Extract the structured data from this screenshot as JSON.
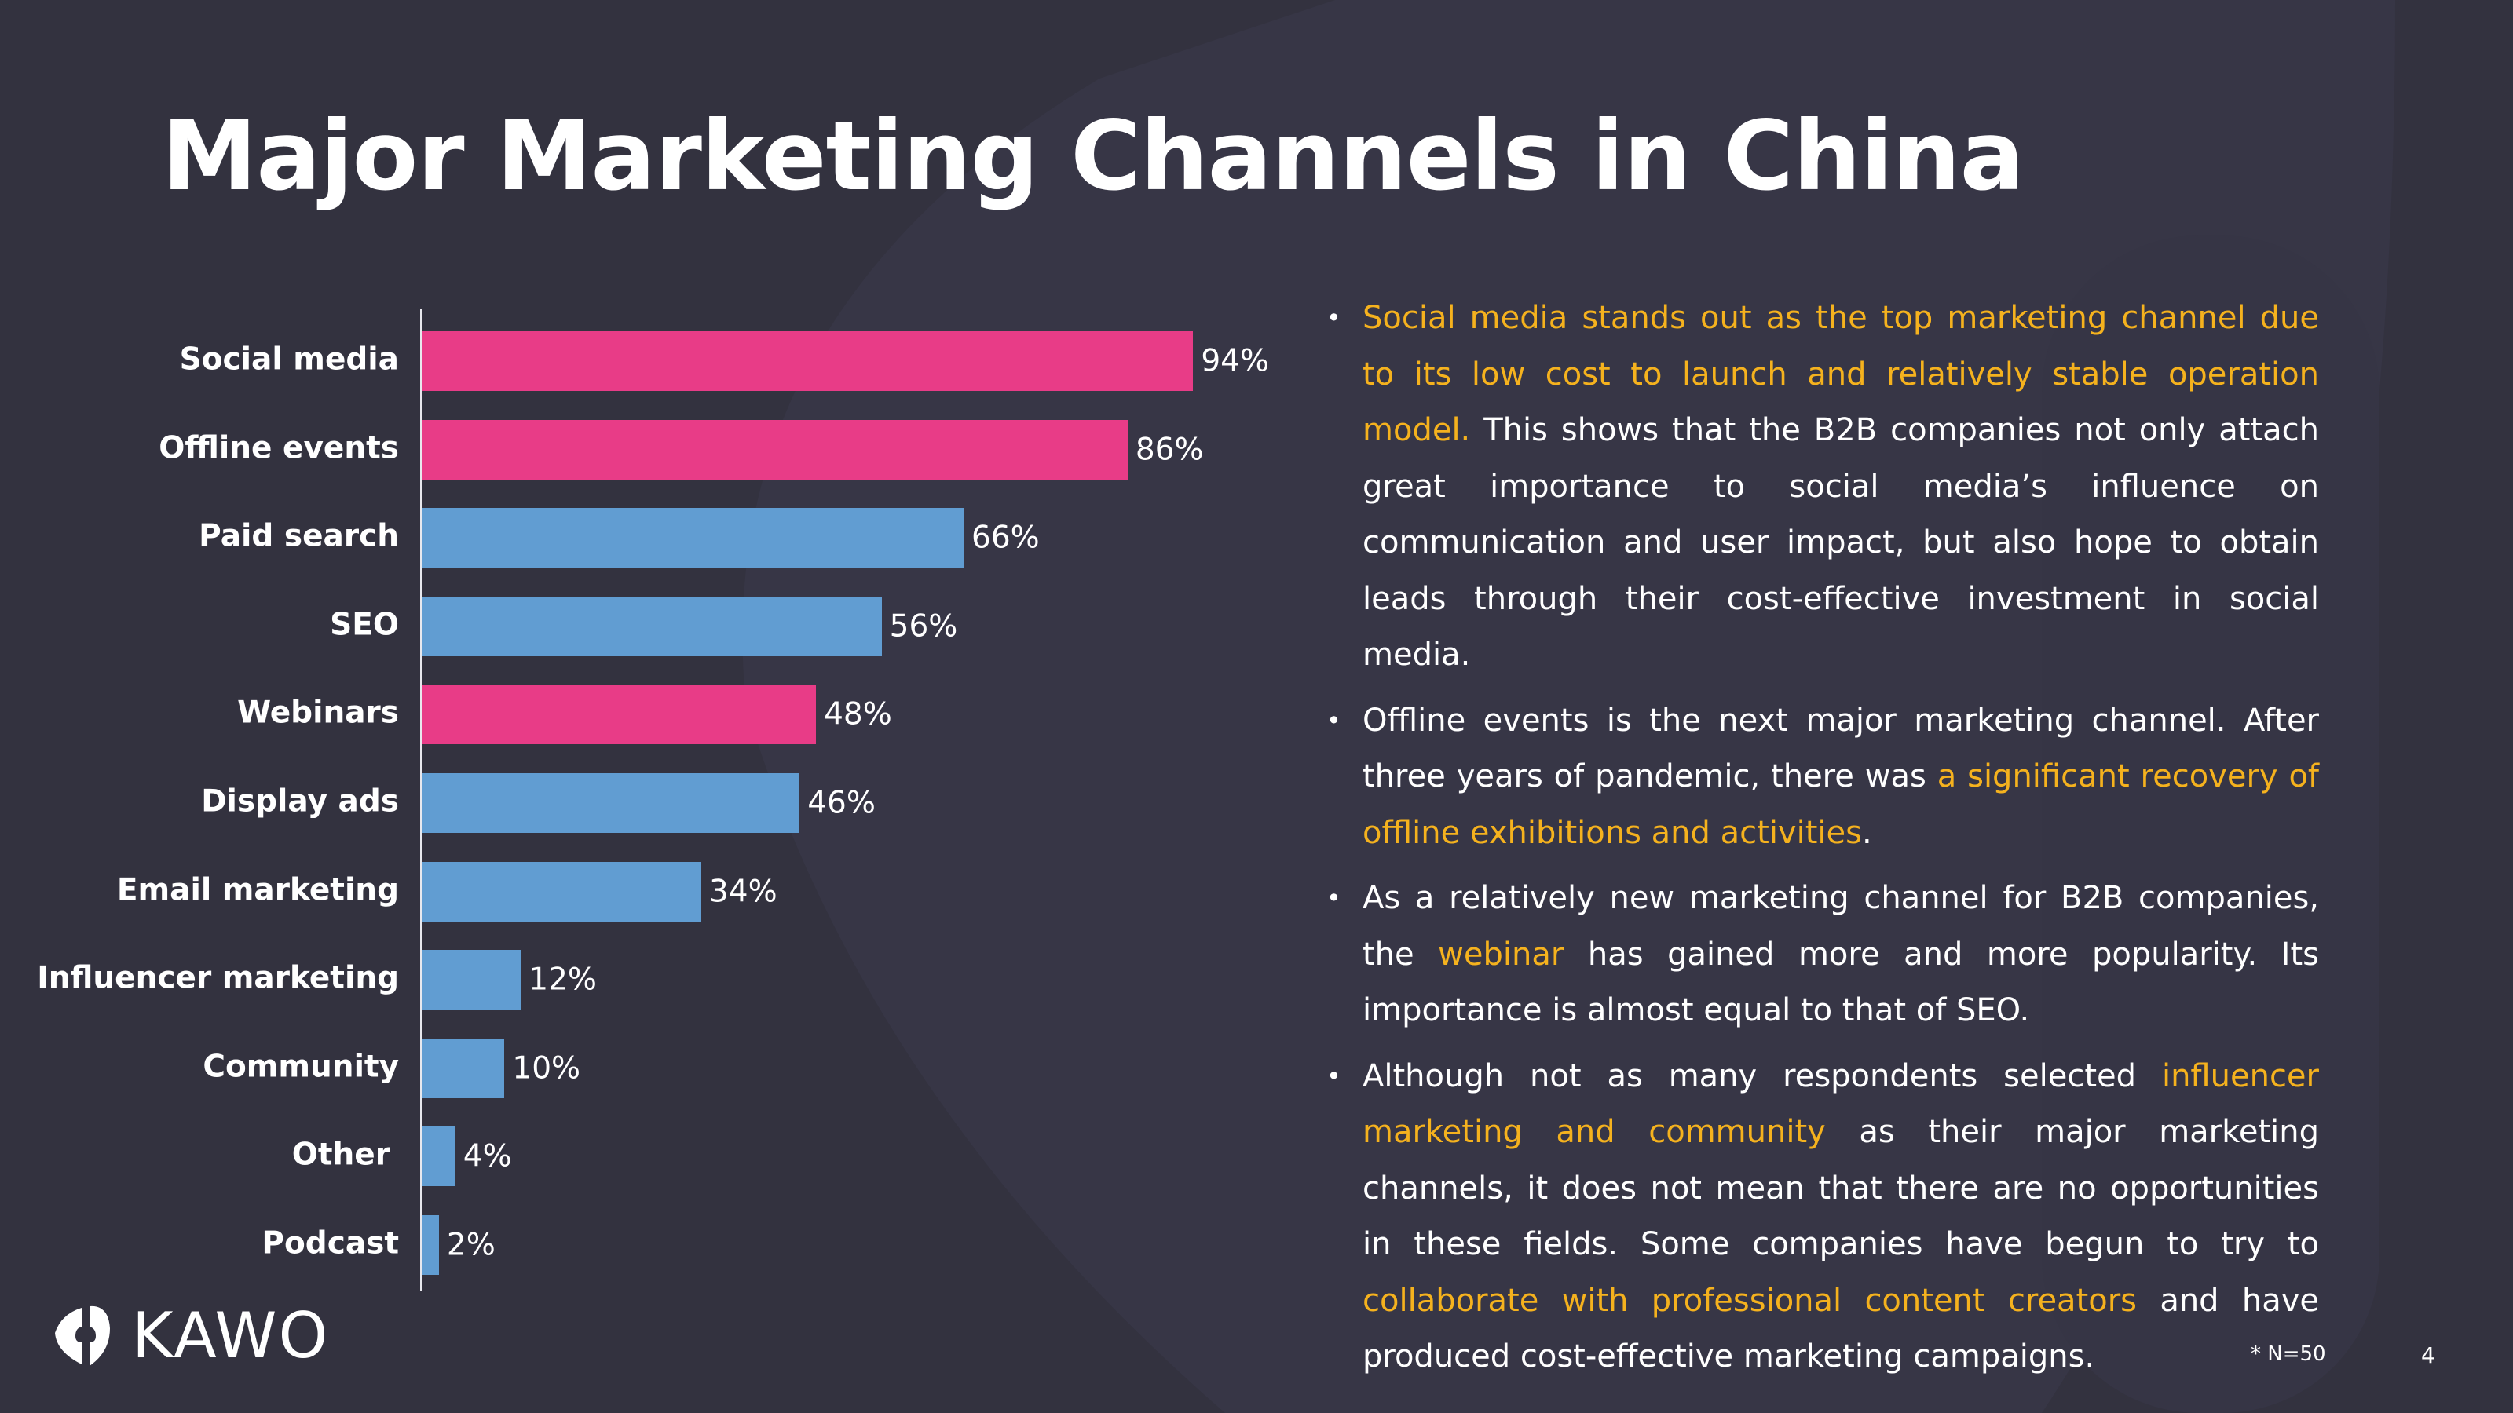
{
  "title": "Major Marketing Channels in China",
  "colors": {
    "background": "#33323f",
    "pink": "#e83c87",
    "blue": "#619dd2",
    "highlight": "#f5b21e"
  },
  "chart_data": {
    "type": "bar",
    "orientation": "horizontal",
    "categories": [
      "Social media",
      "Offline events",
      "Paid search",
      "SEO",
      "Webinars",
      "Display ads",
      "Email marketing",
      "Influencer marketing",
      "Community",
      "Other",
      "Podcast"
    ],
    "values": [
      94,
      86,
      66,
      56,
      48,
      46,
      34,
      12,
      10,
      4,
      2
    ],
    "value_labels": [
      "94%",
      "86%",
      "66%",
      "56%",
      "48%",
      "46%",
      "34%",
      "12%",
      "10%",
      "4%",
      "2%"
    ],
    "bar_colors": [
      "#e83c87",
      "#e83c87",
      "#619dd2",
      "#619dd2",
      "#e83c87",
      "#619dd2",
      "#619dd2",
      "#619dd2",
      "#619dd2",
      "#619dd2",
      "#619dd2"
    ],
    "unit": "%",
    "xlim": [
      0,
      100
    ],
    "grid": false
  },
  "bullets": [
    [
      {
        "t": "Social media stands out as the top marketing channel due to its low cost to launch and relatively stable operation model.",
        "h": true
      },
      {
        "t": " This shows that the B2B companies not only attach great importance to social media’s influence on communication and user impact, but also hope to obtain leads through their cost-effective investment in social media.",
        "h": false
      }
    ],
    [
      {
        "t": "Offline events is the next major marketing channel. After three years of pandemic, there was ",
        "h": false
      },
      {
        "t": "a significant recovery of offline exhibitions and activities",
        "h": true
      },
      {
        "t": ".",
        "h": false
      }
    ],
    [
      {
        "t": "As a relatively new marketing channel for B2B companies, the ",
        "h": false
      },
      {
        "t": "webinar",
        "h": true
      },
      {
        "t": " has gained more and more popularity. Its importance is almost equal to that of SEO.",
        "h": false
      }
    ],
    [
      {
        "t": "Although not as many respondents selected ",
        "h": false
      },
      {
        "t": "influencer marketing and community",
        "h": true
      },
      {
        "t": " as their major marketing channels, it does not mean that there are no opportunities in these fields. Some companies have begun to try to ",
        "h": false
      },
      {
        "t": "collaborate with professional content creators",
        "h": true
      },
      {
        "t": " and have produced cost-effective marketing campaigns.",
        "h": false
      }
    ]
  ],
  "footnote": "* N=50",
  "page_number": "4",
  "logo": {
    "text": "KAWO",
    "icon": "kawo-logo-icon"
  }
}
